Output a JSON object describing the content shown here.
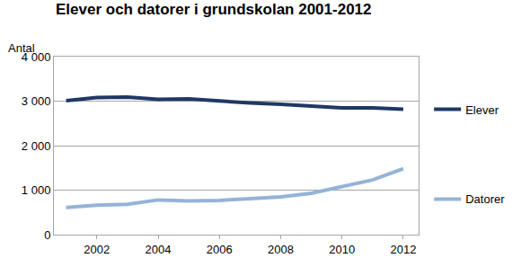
{
  "chart_data": {
    "type": "line",
    "title": "Elever och datorer i grundskolan 2001-2012",
    "y_label": "Antal",
    "x": [
      2001,
      2002,
      2003,
      2004,
      2005,
      2006,
      2007,
      2008,
      2009,
      2010,
      2011,
      2012
    ],
    "series": [
      {
        "name": "Elever",
        "color": "#1f3864",
        "values": [
          3010,
          3080,
          3090,
          3040,
          3050,
          3000,
          2960,
          2930,
          2900,
          2850,
          2850,
          2820
        ]
      },
      {
        "name": "Datorer",
        "color": "#95b3d7",
        "values": [
          610,
          660,
          680,
          780,
          760,
          770,
          810,
          850,
          930,
          1090,
          1230,
          1480
        ]
      }
    ],
    "xlim": [
      2000.6,
      2012.5
    ],
    "xticks": [
      2002,
      2004,
      2006,
      2008,
      2010,
      2012
    ],
    "ylim": [
      0,
      4000
    ],
    "yticks": [
      0,
      {
        "value": 1000,
        "label": "1 000"
      },
      {
        "value": 2000,
        "label": "2 000"
      },
      {
        "value": 3000,
        "label": "3 000"
      },
      {
        "value": 4000,
        "label": "4 000"
      }
    ],
    "grid": true,
    "legend": "right"
  }
}
